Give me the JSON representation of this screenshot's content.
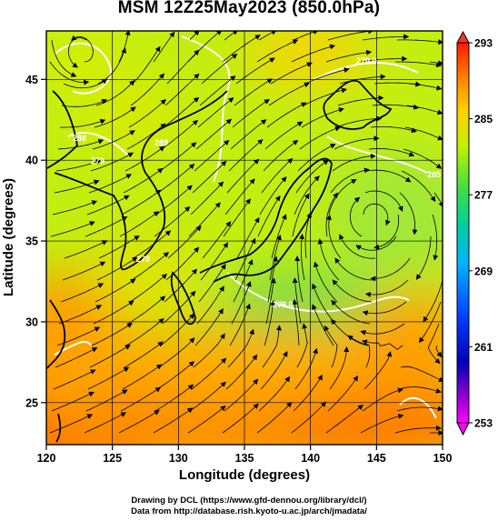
{
  "title": "MSM 12Z25May2023 (850.0hPa)",
  "xlabel": "Longitude (degrees)",
  "ylabel": "Latitude  (degrees)",
  "x_ticks": [
    "120",
    "125",
    "130",
    "135",
    "140",
    "145",
    "150"
  ],
  "y_ticks": [
    "25",
    "30",
    "35",
    "40",
    "45"
  ],
  "colorbar_ticks": [
    "293",
    "285",
    "277",
    "269",
    "261",
    "253"
  ],
  "contour_labels": [
    "270.0",
    "279.0",
    "289",
    "288",
    "285",
    "270",
    "279"
  ],
  "credits": {
    "line1": "Drawing by DCL (https://www.gfd-dennou.org/library/dcl/)",
    "line2": "Data from http://database.rish.kyoto-u.ac.jp/arch/jmadata/"
  },
  "chart_data": {
    "type": "heatmap",
    "variable": "temperature (K) with wind streamlines at 850.0hPa",
    "xlim": [
      120,
      150
    ],
    "ylim": [
      22.4,
      48
    ],
    "clim": [
      253,
      293
    ],
    "grid": true,
    "x_ticks": [
      120,
      125,
      130,
      135,
      140,
      145,
      150
    ],
    "y_ticks": [
      25,
      30,
      35,
      40,
      45
    ],
    "colorbar_ticks": [
      293,
      285,
      277,
      269,
      261,
      253
    ],
    "colorbar_colors": [
      "#ff0000",
      "#ff8a00",
      "#ffd000",
      "#c8f000",
      "#50e000",
      "#00c880",
      "#00b4ff",
      "#0050ff",
      "#0000c0",
      "#8000c0",
      "#ff00ff"
    ],
    "field_samples": [
      {
        "lon": 121,
        "lat": 47,
        "t": 284
      },
      {
        "lon": 130,
        "lat": 47,
        "t": 283
      },
      {
        "lon": 140,
        "lat": 47,
        "t": 281
      },
      {
        "lon": 148,
        "lat": 47,
        "t": 282
      },
      {
        "lon": 124,
        "lat": 42,
        "t": 282
      },
      {
        "lon": 133,
        "lat": 42,
        "t": 282
      },
      {
        "lon": 140,
        "lat": 41,
        "t": 281
      },
      {
        "lon": 145,
        "lat": 38,
        "t": 279
      },
      {
        "lon": 128,
        "lat": 36,
        "t": 284
      },
      {
        "lon": 138,
        "lat": 32,
        "t": 278
      },
      {
        "lon": 146,
        "lat": 32,
        "t": 283
      },
      {
        "lon": 122,
        "lat": 30,
        "t": 289
      },
      {
        "lon": 122,
        "lat": 25,
        "t": 291
      },
      {
        "lon": 130,
        "lat": 27,
        "t": 289
      },
      {
        "lon": 140,
        "lat": 26,
        "t": 290
      },
      {
        "lon": 148,
        "lat": 25,
        "t": 291
      }
    ]
  }
}
